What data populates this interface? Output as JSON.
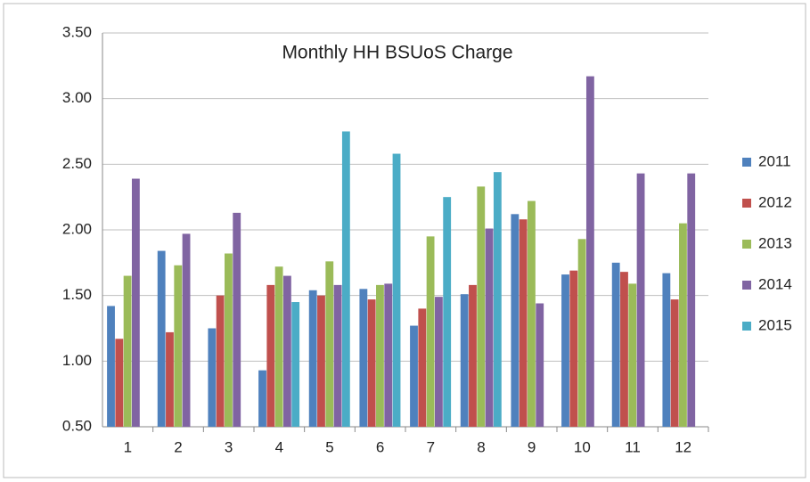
{
  "chart_data": {
    "type": "bar",
    "title": "Monthly HH BSUoS Charge",
    "categories": [
      "1",
      "2",
      "3",
      "4",
      "5",
      "6",
      "7",
      "8",
      "9",
      "10",
      "11",
      "12"
    ],
    "series": [
      {
        "name": "2011",
        "color": "#4f81bd",
        "values": [
          1.42,
          1.84,
          1.25,
          0.93,
          1.54,
          1.55,
          1.27,
          1.51,
          2.12,
          1.66,
          1.75,
          1.67
        ]
      },
      {
        "name": "2012",
        "color": "#c0504d",
        "values": [
          1.17,
          1.22,
          1.5,
          1.58,
          1.5,
          1.47,
          1.4,
          1.58,
          2.08,
          1.69,
          1.68,
          1.47
        ]
      },
      {
        "name": "2013",
        "color": "#9bbb59",
        "values": [
          1.65,
          1.73,
          1.82,
          1.72,
          1.76,
          1.58,
          1.95,
          2.33,
          2.22,
          1.93,
          1.59,
          2.05
        ]
      },
      {
        "name": "2014",
        "color": "#8064a2",
        "values": [
          2.39,
          1.97,
          2.13,
          1.65,
          1.58,
          1.59,
          1.49,
          2.01,
          1.44,
          3.17,
          2.43,
          2.43
        ]
      },
      {
        "name": "2015",
        "color": "#4bacc6",
        "values": [
          null,
          null,
          null,
          1.45,
          2.75,
          2.58,
          2.25,
          2.44,
          null,
          null,
          null,
          null
        ]
      }
    ],
    "ylim": [
      0.5,
      3.5
    ],
    "yticks": [
      {
        "value": 0.5,
        "label": "0.50"
      },
      {
        "value": 1,
        "label": "1.00"
      },
      {
        "value": 1.5,
        "label": "1.50"
      },
      {
        "value": 2,
        "label": "2.00"
      },
      {
        "value": 2.5,
        "label": "2.50"
      },
      {
        "value": 3,
        "label": "3.00"
      },
      {
        "value": 3.5,
        "label": "3.50"
      }
    ],
    "grid": true,
    "legend": "right"
  }
}
